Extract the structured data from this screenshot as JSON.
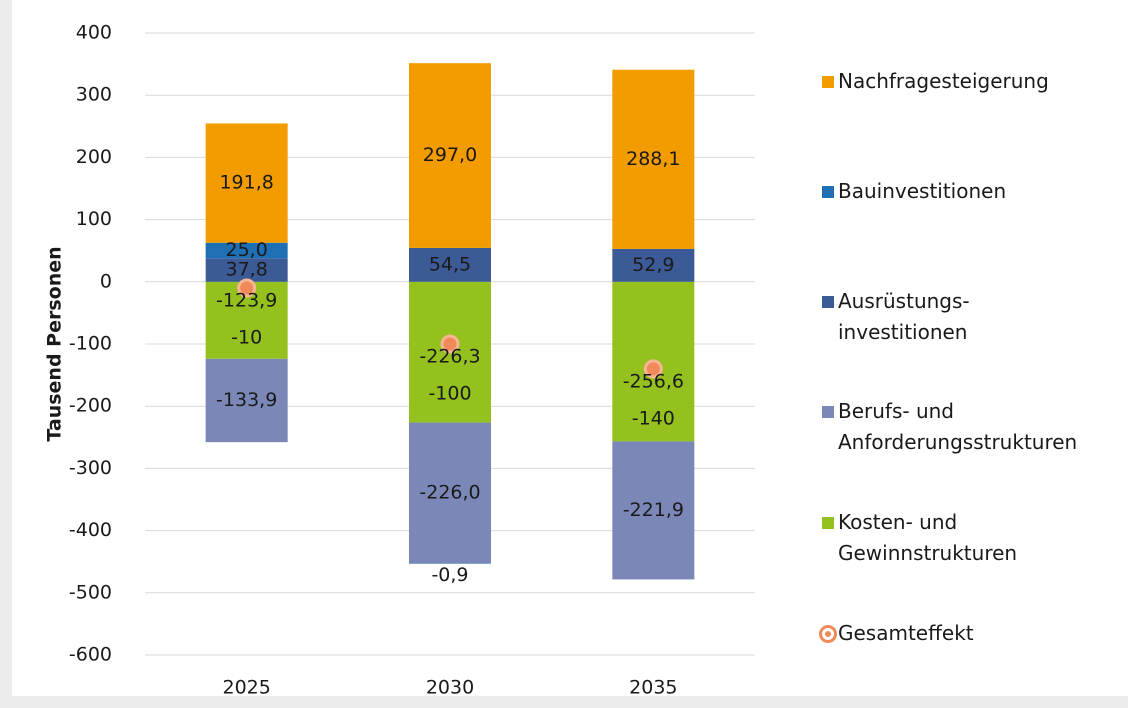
{
  "chart_data": {
    "type": "bar",
    "stacked": true,
    "y_label": "Tausend Personen",
    "categories": [
      "2025",
      "2030",
      "2035"
    ],
    "ylim": [
      -600,
      400
    ],
    "yticks": [
      -600,
      -500,
      -400,
      -300,
      -200,
      -100,
      0,
      100,
      200,
      300,
      400
    ],
    "grid": true,
    "series": [
      {
        "name": "Nachfragesteigerung",
        "color": "#f39c00",
        "label_color": "#000000",
        "values": [
          191.8,
          297.0,
          288.1
        ],
        "value_labels": [
          "191,8",
          "297,0",
          "288,1"
        ]
      },
      {
        "name": "Bauinvestitionen",
        "color": "#1f6fb5",
        "label_color": "#000000",
        "values": [
          25.0,
          -0.9,
          null
        ],
        "value_labels": [
          "25,0",
          "-0,9",
          null
        ]
      },
      {
        "name": "Ausrüstungs-\ninvestitionen",
        "color": "#3c5a96",
        "label_color": "#ffffff",
        "values": [
          37.8,
          54.5,
          52.9
        ],
        "value_labels": [
          "37,8",
          "54,5",
          "52,9"
        ]
      },
      {
        "name": "Berufs- und\nAnforderungsstrukturen",
        "color": "#7b88b7",
        "label_color": "#ffffff",
        "values": [
          -133.9,
          -226.0,
          -221.9
        ],
        "value_labels": [
          "-133,9",
          "-226,0",
          "-221,9"
        ]
      },
      {
        "name": "Kosten- und\nGewinnstrukturen",
        "color": "#95c11f",
        "label_color": "#000000",
        "values": [
          -123.9,
          -226.3,
          -256.6
        ],
        "value_labels": [
          "-123,9",
          "-226,3",
          "-256,6"
        ]
      },
      {
        "name": "Gesamteffekt",
        "type": "scatter",
        "color": "#f08a5a",
        "label_color": "#000000",
        "values": [
          -10,
          -100,
          -140
        ]
      }
    ]
  }
}
